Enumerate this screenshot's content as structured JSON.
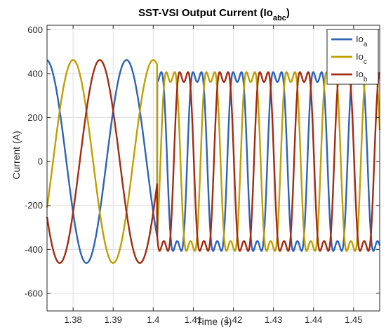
{
  "chart_data": {
    "type": "line",
    "title": "SST-VSI Output Current (Io",
    "title_sub": "abc",
    "title_close": ")",
    "xlabel": "Time (s)",
    "ylabel": "Current (A)",
    "xlim": [
      1.3735,
      1.4565
    ],
    "ylim": [
      -680,
      620
    ],
    "xticks": [
      1.38,
      1.39,
      1.4,
      1.41,
      1.42,
      1.43,
      1.44,
      1.45
    ],
    "xtick_labels": [
      "1.38",
      "1.39",
      "1.4",
      "1.41",
      "1.42",
      "1.43",
      "1.44",
      "1.45"
    ],
    "yticks": [
      -600,
      -400,
      -200,
      0,
      200,
      400,
      600
    ],
    "ytick_labels": [
      "-600",
      "-400",
      "-200",
      "0",
      "200",
      "400",
      "600"
    ],
    "grid": true,
    "legend_position": "top-right",
    "transition_time": 1.401,
    "series": [
      {
        "name": "Io",
        "sub": "a",
        "color": "#2E63B8",
        "pre": {
          "amplitude": 462,
          "frequency_hz": 50,
          "phase_deg": 210
        },
        "post": {
          "amplitude": 520,
          "frequency_hz": 100,
          "phase_deg": 55,
          "third_harmonic": 0.22
        }
      },
      {
        "name": "Io",
        "sub": "c",
        "color": "#BFA000",
        "pre": {
          "amplitude": 462,
          "frequency_hz": 50,
          "phase_deg": 90
        },
        "post": {
          "amplitude": 520,
          "frequency_hz": 100,
          "phase_deg": -65,
          "third_harmonic": 0.22
        }
      },
      {
        "name": "Io",
        "sub": "b",
        "color": "#A32B14",
        "pre": {
          "amplitude": 462,
          "frequency_hz": 50,
          "phase_deg": 330
        },
        "post": {
          "amplitude": 520,
          "frequency_hz": 100,
          "phase_deg": 175,
          "third_harmonic": 0.22
        }
      }
    ]
  }
}
